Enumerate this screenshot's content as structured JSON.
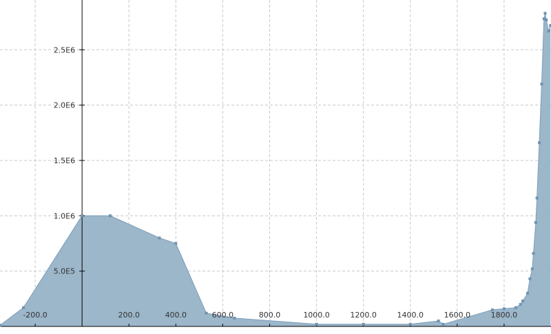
{
  "chart_data": {
    "type": "area",
    "title": "",
    "xlabel": "",
    "ylabel": "",
    "xlim": [
      -350,
      2000
    ],
    "ylim": [
      0,
      2950000
    ],
    "grid": true,
    "x_ticks": [
      {
        "value": -200,
        "label": "-200.0"
      },
      {
        "value": 200,
        "label": "200.0"
      },
      {
        "value": 400,
        "label": "400.0"
      },
      {
        "value": 600,
        "label": "600.0"
      },
      {
        "value": 800,
        "label": "800.0"
      },
      {
        "value": 1000,
        "label": "1000.0"
      },
      {
        "value": 1200,
        "label": "1200.0"
      },
      {
        "value": 1400,
        "label": "1400.0"
      },
      {
        "value": 1600,
        "label": "1600.0"
      },
      {
        "value": 1800,
        "label": "1800.0"
      }
    ],
    "y_ticks": [
      {
        "value": 500000,
        "label": "5.0E5"
      },
      {
        "value": 1000000,
        "label": "1.0E6"
      },
      {
        "value": 1500000,
        "label": "1.5E6"
      },
      {
        "value": 2000000,
        "label": "2.0E6"
      },
      {
        "value": 2500000,
        "label": "2.5E6"
      }
    ],
    "series": [
      {
        "points": [
          [
            -350,
            10000
          ],
          [
            -250,
            170000
          ],
          [
            0,
            1000000
          ],
          [
            120,
            1000000
          ],
          [
            330,
            800000
          ],
          [
            400,
            750000
          ],
          [
            530,
            120000
          ],
          [
            650,
            75000
          ],
          [
            1000,
            20000
          ],
          [
            1200,
            20000
          ],
          [
            1400,
            20000
          ],
          [
            1520,
            50000
          ],
          [
            1540,
            20000
          ],
          [
            1750,
            150000
          ],
          [
            1800,
            160000
          ],
          [
            1850,
            170000
          ],
          [
            1870,
            200000
          ],
          [
            1880,
            230000
          ],
          [
            1900,
            300000
          ],
          [
            1910,
            430000
          ],
          [
            1920,
            520000
          ],
          [
            1925,
            660000
          ],
          [
            1935,
            940000
          ],
          [
            1940,
            1160000
          ],
          [
            1950,
            1660000
          ],
          [
            1960,
            2190000
          ],
          [
            1970,
            2780000
          ],
          [
            1975,
            2830000
          ],
          [
            1980,
            2770000
          ],
          [
            1990,
            2670000
          ],
          [
            1998,
            2720000
          ]
        ]
      }
    ],
    "colors": {
      "fill": "#9cb6ca",
      "line": "#7d9fba",
      "marker": "#6f93b0",
      "grid": "#c8c8c8",
      "axis": "#000000",
      "background": "#ffffff"
    }
  }
}
